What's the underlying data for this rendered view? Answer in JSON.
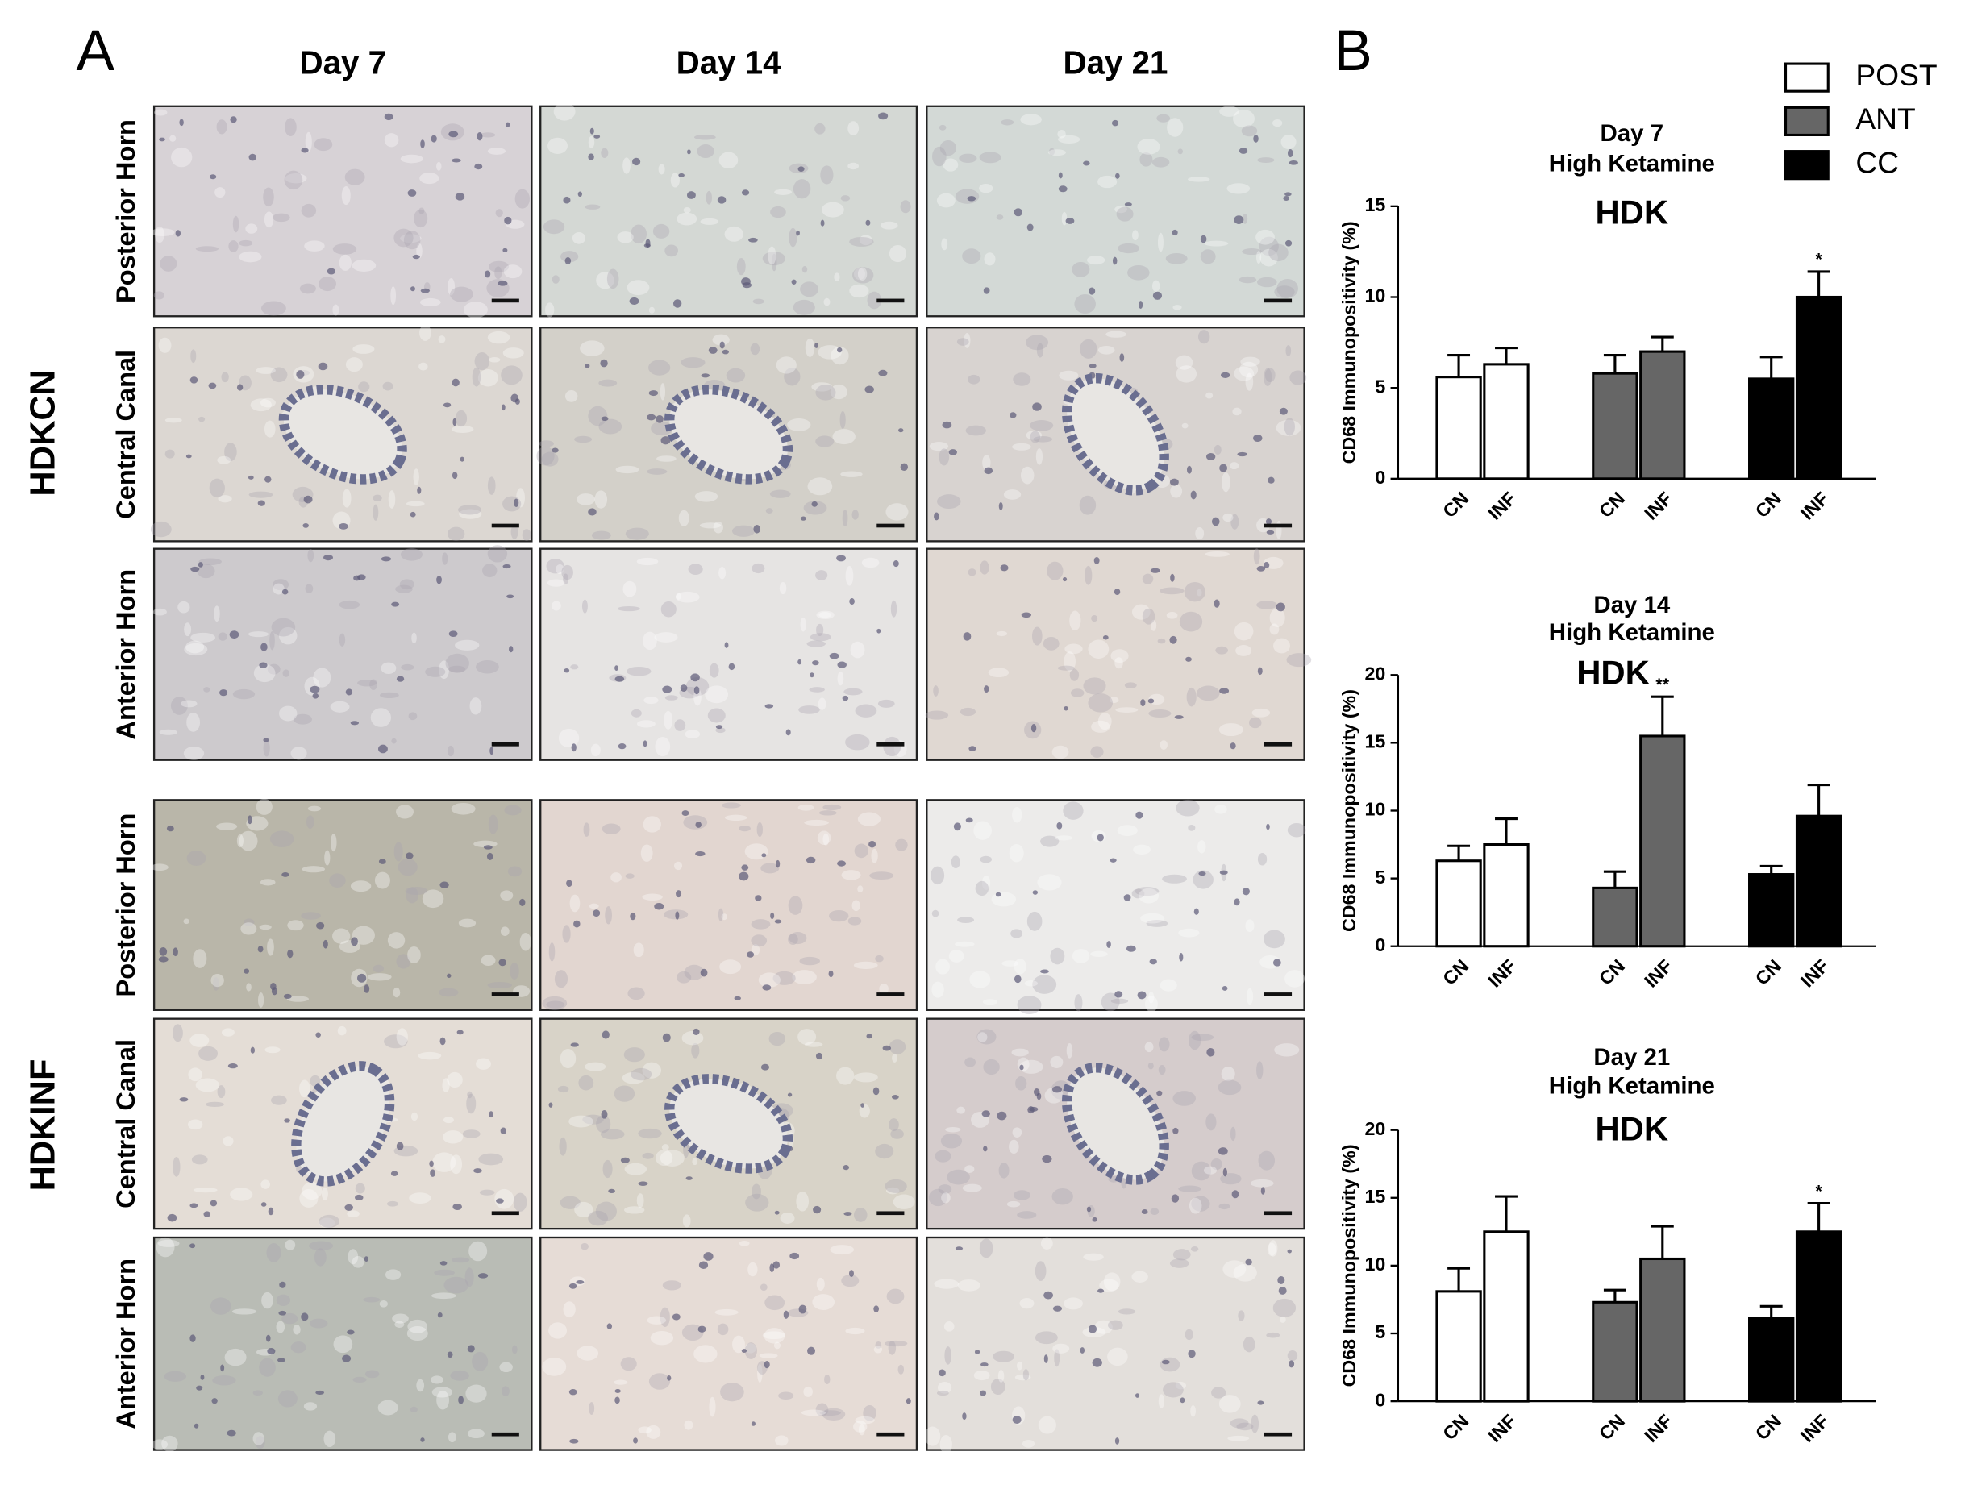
{
  "panel_a": {
    "label": "A",
    "columns": [
      "Day 7",
      "Day 14",
      "Day 21"
    ],
    "groups": [
      {
        "name": "HDKCN",
        "rows": [
          "Posterior Horn",
          "Central Canal",
          "Anterior Horn"
        ]
      },
      {
        "name": "HDKINF",
        "rows": [
          "Posterior Horn",
          "Central Canal",
          "Anterior Horn"
        ]
      }
    ]
  },
  "panel_b": {
    "label": "B"
  },
  "chart_data": [
    {
      "type": "bar",
      "title": "Day 7",
      "subtitle": "High Ketamine",
      "annotation": "HDK",
      "y_label": "CD68 Immunopositivity (%)",
      "categories": [
        "CN",
        "INF"
      ],
      "ylim": [
        0,
        15
      ],
      "yticks": [
        0,
        5,
        10,
        15
      ],
      "series": [
        {
          "name": "POST",
          "color": "#ffffff",
          "values": [
            5.6,
            6.3
          ],
          "errors": [
            1.2,
            0.9
          ],
          "significance": [
            null,
            null
          ]
        },
        {
          "name": "ANT",
          "color": "#666666",
          "values": [
            5.8,
            7.0
          ],
          "errors": [
            1.0,
            0.8
          ],
          "significance": [
            null,
            null
          ]
        },
        {
          "name": "CC",
          "color": "#000000",
          "values": [
            5.5,
            10.0
          ],
          "errors": [
            1.2,
            1.4
          ],
          "significance": [
            null,
            "*"
          ]
        }
      ]
    },
    {
      "type": "bar",
      "title": "Day 14",
      "subtitle": "High Ketamine",
      "annotation": "HDK",
      "y_label": "CD68 Immunopositivity (%)",
      "categories": [
        "CN",
        "INF"
      ],
      "ylim": [
        0,
        20
      ],
      "yticks": [
        0,
        5,
        10,
        15,
        20
      ],
      "series": [
        {
          "name": "POST",
          "color": "#ffffff",
          "values": [
            6.3,
            7.5
          ],
          "errors": [
            1.1,
            1.9
          ],
          "significance": [
            null,
            null
          ]
        },
        {
          "name": "ANT",
          "color": "#666666",
          "values": [
            4.3,
            15.5
          ],
          "errors": [
            1.2,
            2.9
          ],
          "significance": [
            null,
            "**"
          ]
        },
        {
          "name": "CC",
          "color": "#000000",
          "values": [
            5.3,
            9.6
          ],
          "errors": [
            0.6,
            2.3
          ],
          "significance": [
            null,
            null
          ]
        }
      ]
    },
    {
      "type": "bar",
      "title": "Day 21",
      "subtitle": "High Ketamine",
      "annotation": "HDK",
      "y_label": "CD68 Immunopositivity (%)",
      "categories": [
        "CN",
        "INF"
      ],
      "ylim": [
        0,
        20
      ],
      "yticks": [
        0,
        5,
        10,
        15,
        20
      ],
      "series": [
        {
          "name": "POST",
          "color": "#ffffff",
          "values": [
            8.1,
            12.5
          ],
          "errors": [
            1.7,
            2.6
          ],
          "significance": [
            null,
            null
          ]
        },
        {
          "name": "ANT",
          "color": "#666666",
          "values": [
            7.3,
            10.5
          ],
          "errors": [
            0.9,
            2.4
          ],
          "significance": [
            null,
            null
          ]
        },
        {
          "name": "CC",
          "color": "#000000",
          "values": [
            6.1,
            12.5
          ],
          "errors": [
            0.9,
            2.1
          ],
          "significance": [
            null,
            "*"
          ]
        }
      ]
    }
  ]
}
